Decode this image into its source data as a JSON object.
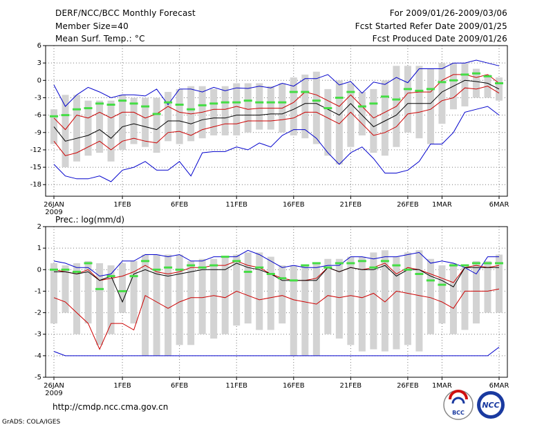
{
  "header": {
    "title": "DERF/NCC/BCC Monthly Forecast",
    "member_size": "Member Size=40",
    "variable": "Mean Surf. Temp.: °C",
    "period": "For 2009/01/26-2009/03/06",
    "start_date": "Fcst Started Refer Date 2009/01/25",
    "produced_date": "Fcst Produced Date 2009/01/26"
  },
  "footer": {
    "url": "http://cmdp.ncc.cma.gov.cn",
    "credit": "GrADS: COLA/IGES",
    "logo_bcc": "BCC",
    "logo_ncc": "NCC"
  },
  "colors": {
    "box": "#d3d3d3",
    "mean": "#000000",
    "obs": "#44dd44",
    "std_band": "#cc0000",
    "envelope": "#0000cc",
    "grid": "#777777"
  },
  "chart_data": [
    {
      "type": "line",
      "title": "Mean Surf. Temp.: °C",
      "ylim": [
        -20,
        6
      ],
      "yticks": [
        6,
        3,
        0,
        -3,
        -6,
        -9,
        -12,
        -15,
        -18
      ],
      "x_start": 1,
      "x_end": 40,
      "xticks": [
        {
          "x": 1,
          "label": "26JAN",
          "sub": "2009"
        },
        {
          "x": 7,
          "label": "1FEB"
        },
        {
          "x": 12,
          "label": "6FEB"
        },
        {
          "x": 17,
          "label": "11FEB"
        },
        {
          "x": 22,
          "label": "16FEB"
        },
        {
          "x": 27,
          "label": "21FEB"
        },
        {
          "x": 32,
          "label": "26FEB"
        },
        {
          "x": 35,
          "label": "1MAR"
        },
        {
          "x": 40,
          "label": "6MAR"
        }
      ],
      "series": [
        {
          "name": "max",
          "values": [
            -0.8,
            -4.5,
            -2.5,
            -1.2,
            -2,
            -3,
            -2.5,
            -2.5,
            -2.7,
            -1.5,
            -4.2,
            -1.5,
            -1.5,
            -2,
            -1.2,
            -1.8,
            -1.3,
            -1.4,
            -1,
            -1.3,
            -0.5,
            -1,
            0.3,
            0.3,
            1,
            -0.8,
            -0.2,
            -2.2,
            -0.3,
            -0.7,
            0.5,
            -0.4,
            2,
            2,
            2,
            3,
            3,
            3.5,
            3,
            2.5
          ]
        },
        {
          "name": "upper_std",
          "values": [
            -6.5,
            -8.5,
            -6,
            -6.5,
            -5.5,
            -6.5,
            -5.5,
            -5.5,
            -6.5,
            -5.8,
            -4.5,
            -5.5,
            -5.8,
            -5.5,
            -5,
            -5,
            -4.5,
            -5,
            -4.8,
            -4.8,
            -4.8,
            -3.8,
            -2,
            -2.5,
            -3.5,
            -4.5,
            -2.5,
            -4.5,
            -6.5,
            -5.5,
            -4.5,
            -2.2,
            -2,
            -2,
            0,
            1,
            1,
            0.5,
            1,
            -0.5
          ]
        },
        {
          "name": "mean",
          "values": [
            -8,
            -10.5,
            -10,
            -9.5,
            -8.5,
            -10,
            -8,
            -7.5,
            -8,
            -8.5,
            -7,
            -7,
            -7.5,
            -6.8,
            -6.5,
            -6.5,
            -6,
            -6,
            -6,
            -5.8,
            -5.8,
            -5,
            -4,
            -4,
            -5,
            -6,
            -4,
            -6,
            -8,
            -7,
            -6,
            -4,
            -4,
            -4,
            -2,
            -1,
            0,
            -0.2,
            -0.5,
            -1.5
          ]
        },
        {
          "name": "lower_std",
          "values": [
            -10.5,
            -13,
            -12.5,
            -11.5,
            -10.5,
            -12,
            -10.5,
            -10,
            -10.5,
            -10.8,
            -9,
            -8.8,
            -9.5,
            -8.5,
            -8,
            -7.5,
            -7.5,
            -7,
            -7,
            -7,
            -6.8,
            -6.5,
            -5.5,
            -5.5,
            -6.5,
            -7.5,
            -5.5,
            -7.5,
            -9.5,
            -9,
            -8,
            -5.8,
            -5.5,
            -5,
            -3.5,
            -3,
            -1.3,
            -1.5,
            -1,
            -2.2
          ]
        },
        {
          "name": "min",
          "values": [
            -14.5,
            -16.5,
            -17,
            -17,
            -16.5,
            -17.5,
            -15.5,
            -15,
            -14,
            -15.5,
            -15.5,
            -14,
            -16.5,
            -12.5,
            -12.3,
            -12.3,
            -11.5,
            -12,
            -10.8,
            -11.5,
            -9.5,
            -8.5,
            -8.5,
            -10,
            -12.5,
            -14.5,
            -12.5,
            -11.5,
            -13.5,
            -16,
            -16,
            -15.5,
            -14,
            -11,
            -11,
            -9,
            -5.5,
            -5,
            -4.5,
            -6
          ]
        },
        {
          "name": "obs",
          "values": [
            -6.2,
            -6,
            -5,
            -4.8,
            -4,
            -4.2,
            -3.5,
            -4,
            -4.5,
            -5.8,
            -3.8,
            -4.2,
            -5,
            -4.3,
            -4,
            -3.8,
            -3.8,
            -3.5,
            -3.8,
            -3.8,
            -3.8,
            -2,
            -2,
            -3.5,
            -4.8,
            -3,
            -2,
            -4.5,
            -4,
            -2.8,
            -3.3,
            -1.5,
            -1.8,
            -1.5,
            -0.3,
            0,
            1,
            1.2,
            0.7,
            -0.5
          ]
        }
      ],
      "boxes": {
        "lo": [
          -11,
          -15,
          -14,
          -13,
          -12.5,
          -14,
          -12,
          -11,
          -11.5,
          -12.5,
          -10.5,
          -11,
          -10.5,
          -10,
          -9.5,
          -9.5,
          -9.5,
          -9,
          -8.5,
          -8.5,
          -9,
          -9.5,
          -10,
          -11,
          -13,
          -14.5,
          -11.5,
          -9.5,
          -12.5,
          -13,
          -11.5,
          -9,
          -10,
          -11,
          -7.5,
          -5,
          -4.5,
          -3,
          -3,
          -3.5
        ],
        "hi": [
          -5,
          -2.5,
          -2.5,
          -3.5,
          -3.5,
          -3.5,
          -2.5,
          -3,
          -3,
          -3,
          -2,
          -1.5,
          -1,
          -1,
          -1.5,
          -1,
          -0.5,
          -0.5,
          -0.5,
          -1,
          -0.5,
          0.5,
          1,
          1.5,
          -1.5,
          0,
          -0.5,
          -2,
          -1.5,
          0,
          2.5,
          2.5,
          2.5,
          2,
          3,
          3,
          3,
          2,
          1,
          0.5
        ]
      }
    },
    {
      "type": "line",
      "title": "Prec.: log(mm/d)",
      "ylim": [
        -5,
        2
      ],
      "yticks": [
        2,
        1,
        0,
        -1,
        -2,
        -3,
        -4,
        -5
      ],
      "x_start": 1,
      "x_end": 40,
      "xticks": [
        {
          "x": 1,
          "label": "26JAN",
          "sub": "2009"
        },
        {
          "x": 7,
          "label": "1FEB"
        },
        {
          "x": 12,
          "label": "6FEB"
        },
        {
          "x": 17,
          "label": "11FEB"
        },
        {
          "x": 22,
          "label": "16FEB"
        },
        {
          "x": 27,
          "label": "21FEB"
        },
        {
          "x": 32,
          "label": "26FEB"
        },
        {
          "x": 35,
          "label": "1MAR"
        },
        {
          "x": 40,
          "label": "6MAR"
        }
      ],
      "series": [
        {
          "name": "max",
          "values": [
            0.4,
            0.3,
            0.1,
            0.1,
            -0.3,
            -0.2,
            0.4,
            0.4,
            0.7,
            0.7,
            0.6,
            0.7,
            0.4,
            0.4,
            0.6,
            0.6,
            0.6,
            0.9,
            0.7,
            0.4,
            0.1,
            0.2,
            0.1,
            0.1,
            0.2,
            0.2,
            0.6,
            0.6,
            0.5,
            0.6,
            0.6,
            0.7,
            0.8,
            0.3,
            0.4,
            0.3,
            0.1,
            -0.2,
            0.6,
            0.6
          ]
        },
        {
          "name": "upper_std",
          "values": [
            0,
            -0.1,
            -0.2,
            0,
            -0.5,
            -0.4,
            -0.3,
            -0.1,
            0.2,
            -0.1,
            -0.2,
            -0.1,
            0.1,
            0.1,
            0.2,
            0.2,
            0.4,
            0.2,
            0.1,
            -0.2,
            -0.4,
            -0.5,
            -0.5,
            -0.4,
            0.1,
            -0.1,
            0.1,
            0,
            0.1,
            0.3,
            -0.2,
            0.1,
            0,
            -0.2,
            -0.4,
            -0.6,
            0.1,
            0.2,
            0.1,
            0.2
          ]
        },
        {
          "name": "mean",
          "values": [
            -0.1,
            -0.1,
            -0.2,
            -0.1,
            -0.5,
            -0.3,
            -1.5,
            -0.2,
            0,
            -0.2,
            -0.3,
            -0.2,
            -0.1,
            0,
            0,
            0,
            0.3,
            0.1,
            0,
            -0.2,
            -0.5,
            -0.5,
            -0.5,
            -0.5,
            0.1,
            -0.1,
            0.1,
            0,
            0,
            0.2,
            -0.3,
            0,
            0,
            -0.3,
            -0.5,
            -0.8,
            0.1,
            0.1,
            0.1,
            0.1
          ]
        },
        {
          "name": "lower_std",
          "values": [
            -1.3,
            -1.5,
            -2,
            -2.5,
            -3.7,
            -2.5,
            -2.5,
            -2.8,
            -1.2,
            -1.5,
            -1.8,
            -1.5,
            -1.3,
            -1.3,
            -1.2,
            -1.3,
            -1,
            -1.2,
            -1.4,
            -1.3,
            -1.2,
            -1.4,
            -1.5,
            -1.6,
            -1.2,
            -1.3,
            -1.2,
            -1.3,
            -1.1,
            -1.5,
            -1,
            -1.1,
            -1.2,
            -1.3,
            -1.5,
            -1.8,
            -1,
            -1,
            -1,
            -0.9
          ]
        },
        {
          "name": "min",
          "values": [
            -3.8,
            -4,
            -4,
            -4,
            -4,
            -4,
            -4,
            -4,
            -4,
            -4,
            -4,
            -4,
            -4,
            -4,
            -4,
            -4,
            -4,
            -4,
            -4,
            -4,
            -4,
            -4,
            -4,
            -4,
            -4,
            -4,
            -4,
            -4,
            -4,
            -4,
            -4,
            -4,
            -4,
            -4,
            -4,
            -4,
            -4,
            -4,
            -4,
            -3.6
          ]
        },
        {
          "name": "obs",
          "values": [
            0,
            0,
            -0.1,
            0.3,
            -0.9,
            -0.3,
            -1,
            -0.3,
            0.4,
            0,
            0.1,
            0,
            0.2,
            0.1,
            0.2,
            0.6,
            0.4,
            -0.1,
            0.1,
            -0.2,
            -0.4,
            -0.5,
            0.2,
            0.3,
            0.1,
            0.3,
            0.3,
            0.4,
            0.1,
            0.4,
            0.2,
            0,
            -0.2,
            -0.5,
            -0.7,
            0.2,
            0.2,
            0.3,
            0.3,
            0.3
          ]
        }
      ],
      "boxes": {
        "lo": [
          -2.5,
          -2,
          -3,
          -2.5,
          -3.5,
          -3,
          -2,
          -2.5,
          -4,
          -4,
          -4,
          -3.5,
          -3.5,
          -3,
          -3.2,
          -3,
          -2.6,
          -2.5,
          -2.8,
          -2.8,
          -2.5,
          -4,
          -4,
          -4,
          -3,
          -3.2,
          -3.5,
          -3.8,
          -3.7,
          -3.8,
          -3.7,
          -3.5,
          -3.8,
          -3,
          -2.5,
          -3,
          -2.8,
          -2.5,
          -2,
          -2
        ],
        "hi": [
          0.3,
          0.2,
          0.3,
          0.4,
          0.3,
          0.2,
          0.3,
          0.4,
          0.7,
          0.7,
          0.7,
          0.7,
          0.4,
          0.5,
          0.5,
          0.6,
          0.7,
          0.8,
          0.8,
          0.6,
          0.2,
          0.2,
          0.2,
          0.3,
          0.5,
          0.5,
          0.6,
          0.6,
          0.8,
          0.9,
          0.6,
          0.8,
          0.9,
          0.5,
          0.2,
          0.3,
          0.1,
          0.4,
          0.4,
          0.7
        ]
      }
    }
  ]
}
